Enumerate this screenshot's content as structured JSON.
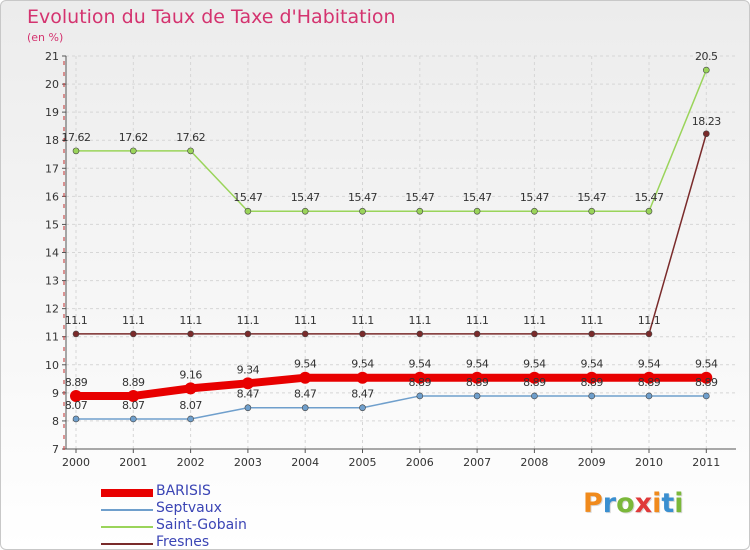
{
  "title": "Evolution du Taux de Taxe d'Habitation",
  "subtitle": "(en %)",
  "logo": {
    "text": "Proxiti",
    "colors": [
      "#f08a1c",
      "#3a8fd0",
      "#7bb83a",
      "#e03a3a",
      "#f08a1c",
      "#3a8fd0",
      "#7bb83a"
    ]
  },
  "chart_data": {
    "type": "line",
    "x": [
      "2000",
      "2001",
      "2002",
      "2003",
      "2004",
      "2005",
      "2006",
      "2007",
      "2008",
      "2009",
      "2010",
      "2011"
    ],
    "ylim": [
      7,
      21
    ],
    "yticks": [
      "7",
      "8",
      "9",
      "10",
      "11",
      "12",
      "13",
      "14",
      "15",
      "16",
      "17",
      "18",
      "19",
      "20",
      "21"
    ],
    "grid": true,
    "legend_position": "bottom-left",
    "series": [
      {
        "name": "BARISIS",
        "color": "#e80000",
        "width": 8,
        "values": [
          8.89,
          8.89,
          9.16,
          9.34,
          9.54,
          9.54,
          9.54,
          9.54,
          9.54,
          9.54,
          9.54,
          9.54
        ],
        "labels": [
          "8.89",
          "8.89",
          "9.16",
          "9.34",
          "9.54",
          "9.54",
          "9.54",
          "9.54",
          "9.54",
          "9.54",
          "9.54",
          "9.54"
        ]
      },
      {
        "name": "Septvaux",
        "color": "#6f9fcc",
        "width": 1.5,
        "values": [
          8.07,
          8.07,
          8.07,
          8.47,
          8.47,
          8.47,
          8.89,
          8.89,
          8.89,
          8.89,
          8.89,
          8.89
        ],
        "labels": [
          "8.07",
          "8.07",
          "8.07",
          "8.47",
          "8.47",
          "8.47",
          "8.89",
          "8.89",
          "8.89",
          "8.89",
          "8.89",
          "8.89"
        ]
      },
      {
        "name": "Saint-Gobain",
        "color": "#9ad45a",
        "width": 1.5,
        "values": [
          17.62,
          17.62,
          17.62,
          15.47,
          15.47,
          15.47,
          15.47,
          15.47,
          15.47,
          15.47,
          15.47,
          20.5
        ],
        "labels": [
          "17.62",
          "17.62",
          "17.62",
          "15.47",
          "15.47",
          "15.47",
          "15.47",
          "15.47",
          "15.47",
          "15.47",
          "15.47",
          "20.5"
        ]
      },
      {
        "name": "Fresnes",
        "color": "#7a2b2b",
        "width": 1.5,
        "values": [
          11.1,
          11.1,
          11.1,
          11.1,
          11.1,
          11.1,
          11.1,
          11.1,
          11.1,
          11.1,
          11.1,
          18.23
        ],
        "labels": [
          "11.1",
          "11.1",
          "11.1",
          "11.1",
          "11.1",
          "11.1",
          "11.1",
          "11.1",
          "11.1",
          "11.1",
          "11.1",
          "18.23"
        ]
      }
    ]
  }
}
